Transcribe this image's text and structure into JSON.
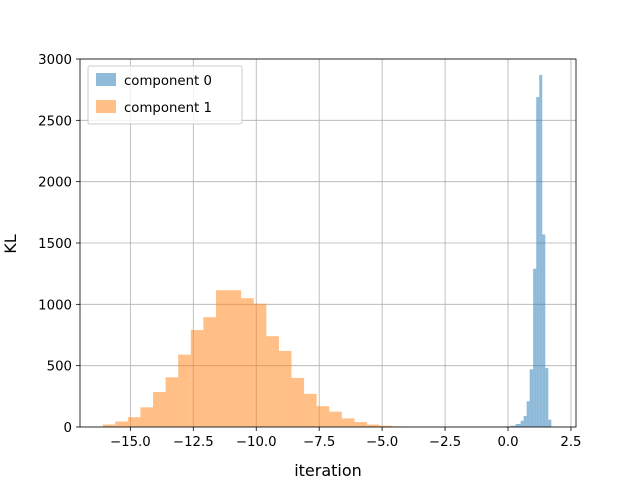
{
  "chart_data": {
    "type": "histogram",
    "xlabel": "iteration",
    "ylabel": "KL",
    "xlim": [
      -17.0,
      2.7
    ],
    "ylim": [
      0,
      3000
    ],
    "xticks": [
      -15.0,
      -12.5,
      -10.0,
      -7.5,
      -5.0,
      -2.5,
      0.0,
      2.5
    ],
    "xtick_labels": [
      "−15.0",
      "−12.5",
      "−10.0",
      "−7.5",
      "−5.0",
      "−2.5",
      "0.0",
      "2.5"
    ],
    "yticks": [
      0,
      500,
      1000,
      1500,
      2000,
      2500,
      3000
    ],
    "ytick_labels": [
      "0",
      "500",
      "1000",
      "1500",
      "2000",
      "2500",
      "3000"
    ],
    "grid": true,
    "legend_position": "top-left",
    "series": [
      {
        "name": "component 0",
        "color": "#1f77b4",
        "alpha": 0.5,
        "bins": [
          {
            "x0": -0.1,
            "x1": 0.1,
            "value": 5
          },
          {
            "x0": 0.1,
            "x1": 0.3,
            "value": 10
          },
          {
            "x0": 0.3,
            "x1": 0.5,
            "value": 25
          },
          {
            "x0": 0.5,
            "x1": 0.62,
            "value": 50
          },
          {
            "x0": 0.62,
            "x1": 0.74,
            "value": 90
          },
          {
            "x0": 0.74,
            "x1": 0.86,
            "value": 210
          },
          {
            "x0": 0.86,
            "x1": 1.0,
            "value": 470
          },
          {
            "x0": 1.0,
            "x1": 1.12,
            "value": 1290
          },
          {
            "x0": 1.12,
            "x1": 1.24,
            "value": 2690
          },
          {
            "x0": 1.24,
            "x1": 1.36,
            "value": 2870
          },
          {
            "x0": 1.36,
            "x1": 1.48,
            "value": 1570
          },
          {
            "x0": 1.48,
            "x1": 1.6,
            "value": 480
          },
          {
            "x0": 1.6,
            "x1": 1.72,
            "value": 60
          }
        ]
      },
      {
        "name": "component 1",
        "color": "#ff7f0e",
        "alpha": 0.5,
        "bins": [
          {
            "x0": -16.1,
            "x1": -15.6,
            "value": 20
          },
          {
            "x0": -15.6,
            "x1": -15.1,
            "value": 45
          },
          {
            "x0": -15.1,
            "x1": -14.6,
            "value": 80
          },
          {
            "x0": -14.6,
            "x1": -14.1,
            "value": 160
          },
          {
            "x0": -14.1,
            "x1": -13.6,
            "value": 285
          },
          {
            "x0": -13.6,
            "x1": -13.1,
            "value": 405
          },
          {
            "x0": -13.1,
            "x1": -12.6,
            "value": 590
          },
          {
            "x0": -12.6,
            "x1": -12.1,
            "value": 790
          },
          {
            "x0": -12.1,
            "x1": -11.6,
            "value": 895
          },
          {
            "x0": -11.6,
            "x1": -10.6,
            "value": 1115
          },
          {
            "x0": -10.6,
            "x1": -10.1,
            "value": 1050
          },
          {
            "x0": -10.1,
            "x1": -9.6,
            "value": 1005
          },
          {
            "x0": -9.6,
            "x1": -9.1,
            "value": 740
          },
          {
            "x0": -9.1,
            "x1": -8.6,
            "value": 620
          },
          {
            "x0": -8.6,
            "x1": -8.1,
            "value": 400
          },
          {
            "x0": -8.1,
            "x1": -7.6,
            "value": 270
          },
          {
            "x0": -7.6,
            "x1": -7.1,
            "value": 170
          },
          {
            "x0": -7.1,
            "x1": -6.6,
            "value": 125
          },
          {
            "x0": -6.6,
            "x1": -6.1,
            "value": 70
          },
          {
            "x0": -6.1,
            "x1": -5.6,
            "value": 40
          },
          {
            "x0": -5.6,
            "x1": -5.1,
            "value": 20
          },
          {
            "x0": -5.1,
            "x1": -4.6,
            "value": 10
          },
          {
            "x0": -4.6,
            "x1": -4.1,
            "value": 5
          }
        ]
      }
    ]
  }
}
